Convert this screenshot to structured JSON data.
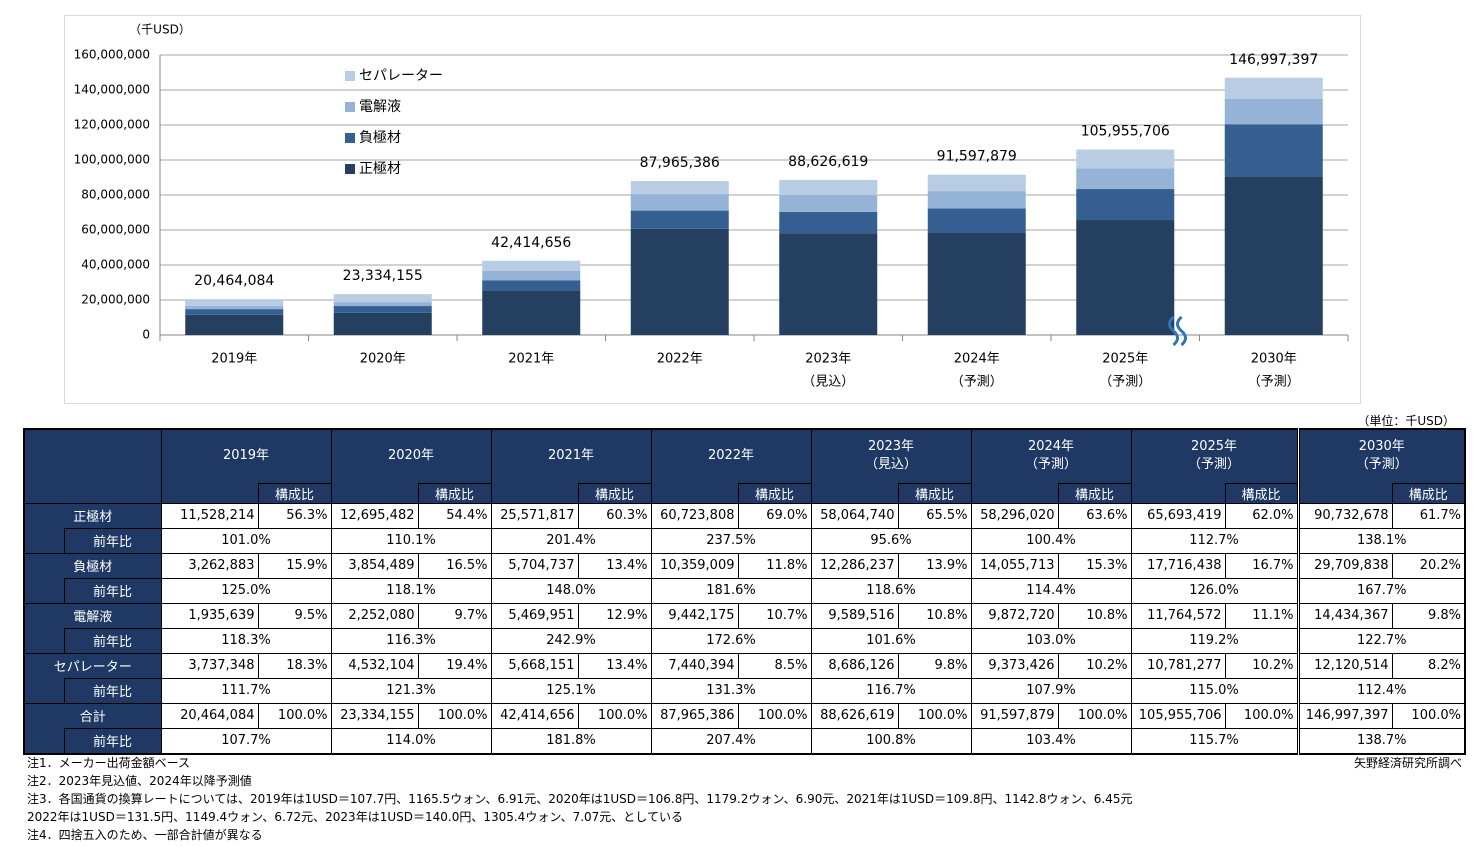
{
  "chart_data": {
    "type": "stacked_bar",
    "y_unit": "（千USD）",
    "categories": [
      "2019年",
      "2020年",
      "2021年",
      "2022年",
      "2023年",
      "2024年",
      "2025年",
      "2030年"
    ],
    "category_sublabels": [
      null,
      null,
      null,
      null,
      "（見込）",
      "（予測）",
      "（予測）",
      "（予測）"
    ],
    "series": [
      {
        "name": "正極材",
        "color": "#243f60",
        "values": [
          11528214,
          12695482,
          25571817,
          60723808,
          58064740,
          58296020,
          65693419,
          90732678
        ]
      },
      {
        "name": "負極材",
        "color": "#365f91",
        "values": [
          3262883,
          3854489,
          5704737,
          10359009,
          12286237,
          14055713,
          17716438,
          29709838
        ]
      },
      {
        "name": "電解液",
        "color": "#95b3d7",
        "values": [
          1935639,
          2252080,
          5469951,
          9442175,
          9589516,
          9872720,
          11764572,
          14434367
        ]
      },
      {
        "name": "セパレーター",
        "color": "#b8cce4",
        "values": [
          3737348,
          4532104,
          5668151,
          7440394,
          8686126,
          9373426,
          10781277,
          12120514
        ]
      }
    ],
    "totals": [
      20464084,
      23334155,
      42414656,
      87965386,
      88626619,
      91597879,
      105955706,
      146997397
    ],
    "total_labels": [
      "20,464,084",
      "23,334,155",
      "42,414,656",
      "87,965,386",
      "88,626,619",
      "91,597,879",
      "105,955,706",
      "146,997,397"
    ],
    "ylim": [
      0,
      160000000
    ],
    "yticks": [
      0,
      {
        "value": 20000000,
        "label": "20,000,000"
      },
      {
        "value": 40000000,
        "label": "40,000,000"
      },
      {
        "value": 60000000,
        "label": "60,000,000"
      },
      {
        "value": 80000000,
        "label": "80,000,000"
      },
      {
        "value": 100000000,
        "label": "100,000,000"
      },
      {
        "value": 120000000,
        "label": "120,000,000"
      },
      {
        "value": 140000000,
        "label": "140,000,000"
      },
      {
        "value": 160000000,
        "label": "160,000,000"
      }
    ],
    "grid": true
  },
  "table": {
    "unit": "（単位：千USD）",
    "share_header": "構成比",
    "yoy_label": "前年比",
    "rows": [
      {
        "label": "正極材",
        "values": [
          "11,528,214",
          "12,695,482",
          "25,571,817",
          "60,723,808",
          "58,064,740",
          "58,296,020",
          "65,693,419",
          "90,732,678"
        ],
        "shares": [
          "56.3%",
          "54.4%",
          "60.3%",
          "69.0%",
          "65.5%",
          "63.6%",
          "62.0%",
          "61.7%"
        ],
        "yoy": [
          "101.0%",
          "110.1%",
          "201.4%",
          "237.5%",
          "95.6%",
          "100.4%",
          "112.7%",
          "138.1%"
        ]
      },
      {
        "label": "負極材",
        "values": [
          "3,262,883",
          "3,854,489",
          "5,704,737",
          "10,359,009",
          "12,286,237",
          "14,055,713",
          "17,716,438",
          "29,709,838"
        ],
        "shares": [
          "15.9%",
          "16.5%",
          "13.4%",
          "11.8%",
          "13.9%",
          "15.3%",
          "16.7%",
          "20.2%"
        ],
        "yoy": [
          "125.0%",
          "118.1%",
          "148.0%",
          "181.6%",
          "118.6%",
          "114.4%",
          "126.0%",
          "167.7%"
        ]
      },
      {
        "label": "電解液",
        "values": [
          "1,935,639",
          "2,252,080",
          "5,469,951",
          "9,442,175",
          "9,589,516",
          "9,872,720",
          "11,764,572",
          "14,434,367"
        ],
        "shares": [
          "9.5%",
          "9.7%",
          "12.9%",
          "10.7%",
          "10.8%",
          "10.8%",
          "11.1%",
          "9.8%"
        ],
        "yoy": [
          "118.3%",
          "116.3%",
          "242.9%",
          "172.6%",
          "101.6%",
          "103.0%",
          "119.2%",
          "122.7%"
        ]
      },
      {
        "label": "セパレーター",
        "values": [
          "3,737,348",
          "4,532,104",
          "5,668,151",
          "7,440,394",
          "8,686,126",
          "9,373,426",
          "10,781,277",
          "12,120,514"
        ],
        "shares": [
          "18.3%",
          "19.4%",
          "13.4%",
          "8.5%",
          "9.8%",
          "10.2%",
          "10.2%",
          "8.2%"
        ],
        "yoy": [
          "111.7%",
          "121.3%",
          "125.1%",
          "131.3%",
          "116.7%",
          "107.9%",
          "115.0%",
          "112.4%"
        ]
      },
      {
        "label": "合計",
        "values": [
          "20,464,084",
          "23,334,155",
          "42,414,656",
          "87,965,386",
          "88,626,619",
          "91,597,879",
          "105,955,706",
          "146,997,397"
        ],
        "shares": [
          "100.0%",
          "100.0%",
          "100.0%",
          "100.0%",
          "100.0%",
          "100.0%",
          "100.0%",
          "100.0%"
        ],
        "yoy": [
          "107.7%",
          "114.0%",
          "181.8%",
          "207.4%",
          "100.8%",
          "103.4%",
          "115.7%",
          "138.7%"
        ]
      }
    ]
  },
  "notes": [
    "注1．メーカー出荷金額ベース",
    "注2．2023年見込値、2024年以降予測値",
    "注3．各国通貨の換算レートについては、2019年は1USD＝107.7円、1165.5ウォン、6.91元、2020年は1USD＝106.8円、1179.2ウォン、6.90元、2021年は1USD＝109.8円、1142.8ウォン、6.45元",
    "2022年は1USD＝131.5円、1149.4ウォン、6.72元、2023年は1USD＝140.0円、1305.4ウォン、7.07元、としている",
    "注4．四捨五入のため、一部合計値が異なる"
  ],
  "source": "矢野経済研究所調べ"
}
